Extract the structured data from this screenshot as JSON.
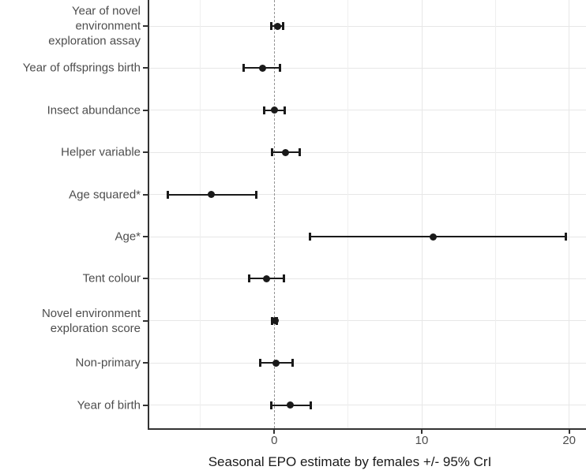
{
  "chart_data": {
    "type": "scatter",
    "subtype": "forest-plot",
    "title": "",
    "xlabel": "Seasonal EPO estimate by females +/- 95% CrI",
    "ylabel": "",
    "xlim": [
      -8.5,
      21.2
    ],
    "x_ticks": [
      0,
      10,
      20
    ],
    "x_minor_gridlines": [
      -5,
      5,
      15
    ],
    "x_major_gridlines": [
      10,
      20
    ],
    "reference_line": {
      "x": 0,
      "style": "dashed"
    },
    "grid": "on",
    "legend": "none",
    "rows": [
      {
        "label_lines": [
          "Year of novel",
          "environment",
          "exploration assay"
        ],
        "estimate": 0.2,
        "ci_low": -0.2,
        "ci_high": 0.6
      },
      {
        "label_lines": [
          "Year of offsprings birth"
        ],
        "estimate": -0.8,
        "ci_low": -2.1,
        "ci_high": 0.4
      },
      {
        "label_lines": [
          "Insect abundance"
        ],
        "estimate": 0.0,
        "ci_low": -0.7,
        "ci_high": 0.7
      },
      {
        "label_lines": [
          "Helper variable"
        ],
        "estimate": 0.75,
        "ci_low": -0.15,
        "ci_high": 1.7
      },
      {
        "label_lines": [
          "Age squared*"
        ],
        "estimate": -4.3,
        "ci_low": -7.2,
        "ci_high": -1.2
      },
      {
        "label_lines": [
          "Age*"
        ],
        "estimate": 10.8,
        "ci_low": 2.4,
        "ci_high": 19.8
      },
      {
        "label_lines": [
          "Tent colour"
        ],
        "estimate": -0.55,
        "ci_low": -1.7,
        "ci_high": 0.65
      },
      {
        "label_lines": [
          "Novel environment",
          "exploration score"
        ],
        "estimate": 0.05,
        "ci_low": -0.15,
        "ci_high": 0.15
      },
      {
        "label_lines": [
          "Non-primary"
        ],
        "estimate": 0.1,
        "ci_low": -0.95,
        "ci_high": 1.25
      },
      {
        "label_lines": [
          "Year of birth"
        ],
        "estimate": 1.1,
        "ci_low": -0.2,
        "ci_high": 2.5
      }
    ],
    "colors": {
      "point": "#1a1a1a",
      "axis_line": "#333333",
      "grid_major": "#e7e7e7",
      "grid_minor": "#efefef",
      "reference_line": "#949494",
      "tick_label_text": "#4d4d4d",
      "axis_title_text": "#1a1a1a",
      "background": "#ffffff"
    }
  }
}
